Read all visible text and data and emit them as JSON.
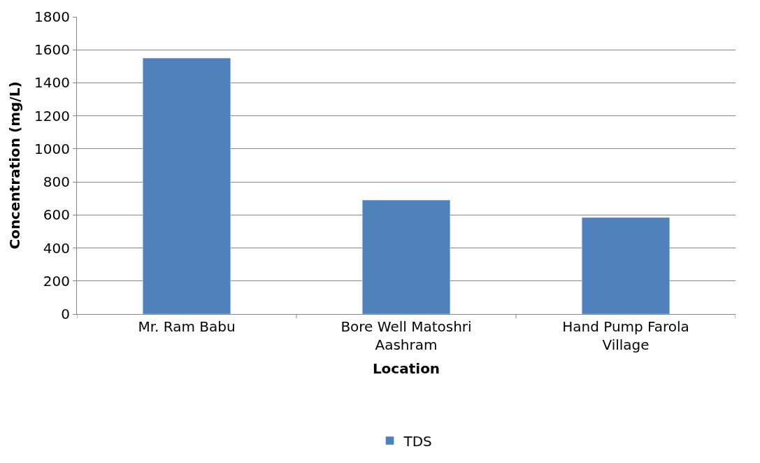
{
  "chart_data": {
    "type": "bar",
    "xlabel": "Location",
    "ylabel": "Concentration (mg/L)",
    "categories": [
      "Mr. Ram Babu",
      "Bore Well Matoshri Aashram",
      "Hand Pump Farola Village"
    ],
    "series": [
      {
        "name": "TDS",
        "color": "#4f81bd",
        "values": [
          1550,
          690,
          585
        ]
      }
    ],
    "ylim": [
      0,
      1800
    ],
    "yticks": [
      0,
      200,
      400,
      600,
      800,
      1000,
      1200,
      1400,
      1600,
      1800
    ],
    "grid": "y",
    "legend": "bottom"
  }
}
